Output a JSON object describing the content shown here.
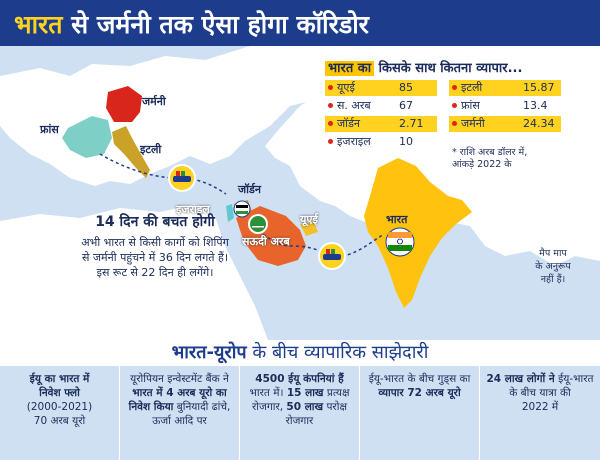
{
  "header": {
    "title_highlight": "भारत",
    "title_rest": " से जर्मनी तक ऐसा होगा कॉरिडोर"
  },
  "map": {
    "labels": {
      "germany": "जर्मनी",
      "france": "फ्रांस",
      "italy": "इटली",
      "israel": "इजराइल",
      "jordan": "जॉर्डन",
      "saudi": "सऊदी अरब",
      "uae": "यूएई",
      "india": "भारत"
    },
    "colors": {
      "germany": "#d9261c",
      "france": "#7ed0c6",
      "italy": "#c9a227",
      "israel": "#60c8cf",
      "saudi": "#e8642a",
      "uae": "#f2c02a",
      "india": "#ffc20e",
      "land": "#ffffff",
      "sea": "#cfe0f2"
    }
  },
  "trade": {
    "title_highlight": "भारत का",
    "title_rest": " किसके साथ कितना व्यापार...",
    "rows": [
      {
        "country": "यूएई",
        "value": "85",
        "highlight": true
      },
      {
        "country": "स. अरब",
        "value": "67",
        "highlight": false
      },
      {
        "country": "जॉर्डन",
        "value": "2.71",
        "highlight": true
      },
      {
        "country": "इजराइल",
        "value": "10",
        "highlight": false
      },
      {
        "country": "इटली",
        "value": "15.87",
        "highlight": true
      },
      {
        "country": "फ्रांस",
        "value": "13.4",
        "highlight": false
      },
      {
        "country": "जर्मनी",
        "value": "24.34",
        "highlight": true
      }
    ],
    "note_line1": "* राशि अरब डॉलर में,",
    "note_line2": "आंकड़े 2022 के"
  },
  "savings": {
    "title": "14 दिन की बचत होगी",
    "line1": "अभी भारत से किसी कार्गो को शिपिंग",
    "line2": "से जर्मनी पहुंचने में 36 दिन लगते हैं।",
    "line3": "इस रूट से 22 दिन ही लगेंगे।"
  },
  "map_note": {
    "line1": "मैप माप",
    "line2": "के अनुरूप",
    "line3": "नहीं हैं।"
  },
  "section": {
    "title_strong": "भारत-यूरोप",
    "title_rest": " के बीच व्यापारिक साझेदारी"
  },
  "facts": [
    {
      "p1": "ईयू का भारत में",
      "p2": "निवेश फ्लो",
      "p3": "(2000-2021)",
      "p4": "70 अरब यूरो"
    },
    {
      "p1": "यूरोपियन इन्वेस्टमेंट बैंक ने",
      "p2": "भारत में 4 अरब यूरो का",
      "p3": "निवेश किया",
      "p4": " बुनियादी ढांचे, ऊर्जा आदि पर"
    },
    {
      "p1": "4500 ईयू कंपनियां हैं",
      "p2": " भारत में। ",
      "p3": "15 लाख",
      "p4": " प्रत्यक्ष रोजगार, ",
      "p5": "50 लाख",
      "p6": " परोक्ष रोजगार"
    },
    {
      "p1": "ईयू-भारत के बीच गुड्स का ",
      "p2": "व्यापार 72 अरब यूरो"
    },
    {
      "p1": "24 लाख लोगों ने",
      "p2": " ईयू-भारत के बीच यात्रा की",
      "p3": "2022 में"
    }
  ]
}
